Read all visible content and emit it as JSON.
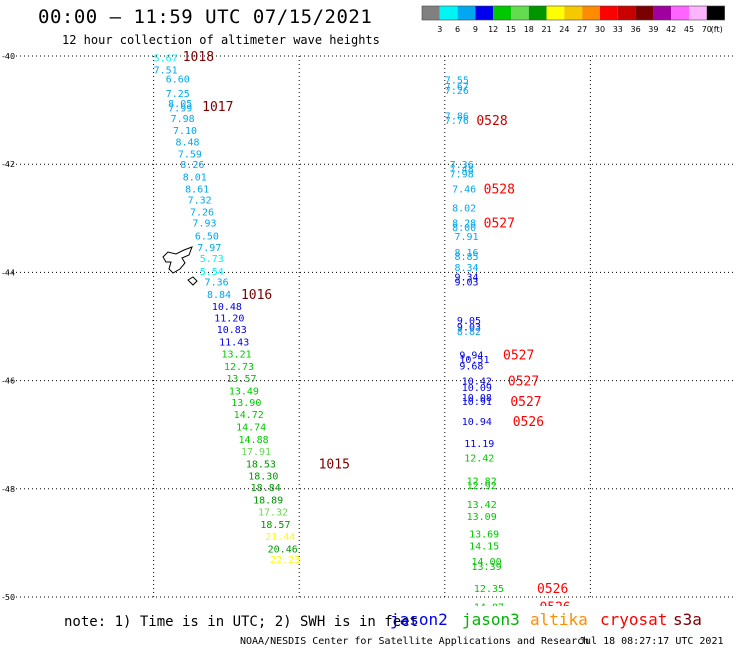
{
  "header": {
    "title": "00:00 – 11:59 UTC 07/15/2021",
    "subtitle": "12 hour collection of altimeter wave heights"
  },
  "colorbar": {
    "colors": [
      "#808080",
      "#00f5f5",
      "#00a8f0",
      "#0000f0",
      "#00c800",
      "#64dc50",
      "#009600",
      "#ffff00",
      "#f5c800",
      "#ff8c00",
      "#ff0000",
      "#c80000",
      "#7a0000",
      "#a000a0",
      "#ff64ff",
      "#ffb4ff",
      "#000000"
    ],
    "labels": [
      "3",
      "6",
      "9",
      "12",
      "15",
      "18",
      "21",
      "24",
      "27",
      "30",
      "33",
      "36",
      "39",
      "42",
      "45",
      "70"
    ],
    "unit": "(ft)"
  },
  "chart_data": {
    "type": "scatter",
    "title": "00:00 – 11:59 UTC 07/15/2021",
    "subtitle": "12 hour collection of altimeter wave heights",
    "x_ticks": [
      "-180",
      "-177",
      "-174",
      "-171",
      "-168",
      "-165"
    ],
    "y_ticks": [
      "-40",
      "-42",
      "-44",
      "-46",
      "-48",
      "-50"
    ],
    "xlim": [
      -180,
      -165
    ],
    "ylim": [
      -50,
      -40
    ],
    "units": "SWH in feet, time in UTC",
    "series": [
      {
        "name": "cryosat",
        "color": "#ff0000",
        "points": [
          {
            "lon": -177.0,
            "lat": -40.03,
            "v": "5.67"
          },
          {
            "lon": -177.0,
            "lat": -40.25,
            "v": "7.51"
          },
          {
            "lon": -176.75,
            "lat": -40.42,
            "v": "6.60"
          },
          {
            "lon": -176.75,
            "lat": -40.68,
            "v": "7.25"
          },
          {
            "lon": -176.7,
            "lat": -40.87,
            "v": "8.05"
          },
          {
            "lon": -176.7,
            "lat": -40.95,
            "v": "7.99"
          },
          {
            "lon": -176.65,
            "lat": -41.15,
            "v": "7.98"
          },
          {
            "lon": -176.6,
            "lat": -41.37,
            "v": "7.10"
          },
          {
            "lon": -176.55,
            "lat": -41.58,
            "v": "8.48"
          },
          {
            "lon": -176.5,
            "lat": -41.8,
            "v": "7.59"
          },
          {
            "lon": -176.45,
            "lat": -42.0,
            "v": "8.26"
          },
          {
            "lon": -176.4,
            "lat": -42.23,
            "v": "8.01"
          },
          {
            "lon": -176.35,
            "lat": -42.45,
            "v": "8.61"
          },
          {
            "lon": -176.3,
            "lat": -42.65,
            "v": "7.32"
          },
          {
            "lon": -176.25,
            "lat": -42.87,
            "v": "7.26"
          },
          {
            "lon": -176.2,
            "lat": -43.08,
            "v": "7.93"
          },
          {
            "lon": -176.15,
            "lat": -43.32,
            "v": "6.50"
          },
          {
            "lon": -176.1,
            "lat": -43.53,
            "v": "7.97"
          },
          {
            "lon": -176.05,
            "lat": -43.73,
            "v": "5.73"
          },
          {
            "lon": -176.05,
            "lat": -43.97,
            "v": "5.54"
          },
          {
            "lon": -175.95,
            "lat": -44.17,
            "v": "7.36"
          },
          {
            "lon": -175.9,
            "lat": -44.4,
            "v": "8.84"
          },
          {
            "lon": -175.8,
            "lat": -44.62,
            "v": "10.48"
          },
          {
            "lon": -175.75,
            "lat": -44.83,
            "v": "11.20"
          },
          {
            "lon": -175.7,
            "lat": -45.05,
            "v": "10.83"
          },
          {
            "lon": -175.65,
            "lat": -45.28,
            "v": "11.43"
          },
          {
            "lon": -175.6,
            "lat": -45.5,
            "v": "13.21"
          },
          {
            "lon": -175.55,
            "lat": -45.73,
            "v": "12.73"
          },
          {
            "lon": -175.5,
            "lat": -45.95,
            "v": "13.57"
          },
          {
            "lon": -175.45,
            "lat": -46.18,
            "v": "13.49"
          },
          {
            "lon": -175.4,
            "lat": -46.4,
            "v": "13.90"
          },
          {
            "lon": -175.35,
            "lat": -46.62,
            "v": "14.72"
          },
          {
            "lon": -175.3,
            "lat": -46.85,
            "v": "14.74"
          },
          {
            "lon": -175.25,
            "lat": -47.08,
            "v": "14.88"
          },
          {
            "lon": -175.2,
            "lat": -47.3,
            "v": "17.91"
          },
          {
            "lon": -175.1,
            "lat": -47.53,
            "v": "18.53"
          },
          {
            "lon": -175.05,
            "lat": -47.75,
            "v": "18.30"
          },
          {
            "lon": -175.0,
            "lat": -47.97,
            "v": "18.84"
          },
          {
            "lon": -174.95,
            "lat": -48.2,
            "v": "18.89"
          },
          {
            "lon": -174.85,
            "lat": -48.42,
            "v": "17.32"
          },
          {
            "lon": -174.8,
            "lat": -48.65,
            "v": "18.57"
          },
          {
            "lon": -174.7,
            "lat": -48.87,
            "v": "21.44"
          },
          {
            "lon": -174.65,
            "lat": -49.1,
            "v": "20.46"
          },
          {
            "lon": -174.6,
            "lat": -49.3,
            "v": "22.23"
          }
        ]
      },
      {
        "name": "jason3",
        "color": "#00c800",
        "points": [
          {
            "lon": -171.0,
            "lat": -40.43,
            "v": "7.55"
          },
          {
            "lon": -171.0,
            "lat": -40.55,
            "v": "7.67"
          },
          {
            "lon": -171.0,
            "lat": -40.63,
            "v": "7.26"
          },
          {
            "lon": -171.0,
            "lat": -41.1,
            "v": "7.86"
          },
          {
            "lon": -171.0,
            "lat": -41.18,
            "v": "7.76"
          },
          {
            "lon": -170.9,
            "lat": -42.0,
            "v": "7.36"
          },
          {
            "lon": -170.9,
            "lat": -42.08,
            "v": "7.48"
          },
          {
            "lon": -170.9,
            "lat": -42.17,
            "v": "7.98"
          },
          {
            "lon": -170.85,
            "lat": -42.45,
            "v": "7.46"
          },
          {
            "lon": -170.85,
            "lat": -42.8,
            "v": "8.02"
          },
          {
            "lon": -170.85,
            "lat": -43.08,
            "v": "8.28"
          },
          {
            "lon": -170.85,
            "lat": -43.16,
            "v": "8.00"
          },
          {
            "lon": -170.8,
            "lat": -43.33,
            "v": "7.91"
          },
          {
            "lon": -170.8,
            "lat": -43.62,
            "v": "8.16"
          },
          {
            "lon": -170.8,
            "lat": -43.7,
            "v": "8.85"
          },
          {
            "lon": -170.8,
            "lat": -43.9,
            "v": "8.34"
          },
          {
            "lon": -170.8,
            "lat": -44.08,
            "v": "9.34"
          },
          {
            "lon": -170.8,
            "lat": -44.17,
            "v": "9.03"
          },
          {
            "lon": -170.75,
            "lat": -44.88,
            "v": "9.05"
          },
          {
            "lon": -170.75,
            "lat": -45.0,
            "v": "9.03"
          },
          {
            "lon": -170.75,
            "lat": -45.08,
            "v": "8.82"
          },
          {
            "lon": -170.7,
            "lat": -45.52,
            "v": "9.94"
          },
          {
            "lon": -170.7,
            "lat": -45.6,
            "v": "10.51"
          },
          {
            "lon": -170.7,
            "lat": -45.72,
            "v": "9.68"
          },
          {
            "lon": -170.65,
            "lat": -46.0,
            "v": "10.42"
          },
          {
            "lon": -170.65,
            "lat": -46.12,
            "v": "10.09"
          },
          {
            "lon": -170.65,
            "lat": -46.3,
            "v": "10.08"
          },
          {
            "lon": -170.65,
            "lat": -46.38,
            "v": "10.91"
          },
          {
            "lon": -170.65,
            "lat": -46.75,
            "v": "10.94"
          },
          {
            "lon": -170.6,
            "lat": -47.15,
            "v": "11.19"
          },
          {
            "lon": -170.6,
            "lat": -47.42,
            "v": "12.42"
          },
          {
            "lon": -170.55,
            "lat": -47.85,
            "v": "12.82"
          },
          {
            "lon": -170.55,
            "lat": -47.93,
            "v": "12.92"
          },
          {
            "lon": -170.55,
            "lat": -48.28,
            "v": "13.42"
          },
          {
            "lon": -170.55,
            "lat": -48.5,
            "v": "13.09"
          },
          {
            "lon": -170.5,
            "lat": -48.83,
            "v": "13.69"
          },
          {
            "lon": -170.5,
            "lat": -49.05,
            "v": "14.15"
          },
          {
            "lon": -170.45,
            "lat": -49.33,
            "v": "14.00"
          },
          {
            "lon": -170.45,
            "lat": -49.43,
            "v": "13.39"
          },
          {
            "lon": -170.4,
            "lat": -49.83,
            "v": "12.35"
          },
          {
            "lon": -170.4,
            "lat": -50.18,
            "v": "14.07"
          },
          {
            "lon": -170.4,
            "lat": -50.28,
            "v": "14.14"
          }
        ]
      }
    ],
    "time_labels": [
      {
        "lon": -176.4,
        "lat": -40.0,
        "t": "1018",
        "color": "#7a0000"
      },
      {
        "lon": -176.0,
        "lat": -40.92,
        "t": "1017",
        "color": "#7a0000"
      },
      {
        "lon": -175.2,
        "lat": -44.4,
        "t": "1016",
        "color": "#7a0000"
      },
      {
        "lon": -173.6,
        "lat": -47.53,
        "t": "1015",
        "color": "#7a0000"
      },
      {
        "lon": -170.35,
        "lat": -41.18,
        "t": "0528",
        "color": "#c80000"
      },
      {
        "lon": -170.2,
        "lat": -42.45,
        "t": "0528",
        "color": "#ff0000"
      },
      {
        "lon": -170.2,
        "lat": -43.08,
        "t": "0527",
        "color": "#ff0000"
      },
      {
        "lon": -169.8,
        "lat": -45.52,
        "t": "0527",
        "color": "#ff0000"
      },
      {
        "lon": -169.7,
        "lat": -46.0,
        "t": "0527",
        "color": "#ff0000"
      },
      {
        "lon": -169.65,
        "lat": -46.38,
        "t": "0527",
        "color": "#ff0000"
      },
      {
        "lon": -169.6,
        "lat": -46.75,
        "t": "0526",
        "color": "#ff0000"
      },
      {
        "lon": -169.1,
        "lat": -49.83,
        "t": "0526",
        "color": "#ff0000"
      },
      {
        "lon": -169.05,
        "lat": -50.18,
        "t": "0526",
        "color": "#ff0000"
      }
    ]
  },
  "footer": {
    "note": "note: 1) Time is in UTC; 2) SWH is in feet",
    "satellites": [
      {
        "name": "jason2",
        "color": "#0000f0"
      },
      {
        "name": "jason3",
        "color": "#00b400"
      },
      {
        "name": "altika",
        "color": "#ff8c00"
      },
      {
        "name": "cryosat",
        "color": "#ff0000"
      },
      {
        "name": "s3a",
        "color": "#7a0000"
      }
    ],
    "credit": "NOAA/NESDIS Center for Satellite Applications and Research",
    "timestamp": "Jul 18 08:27:17 UTC 2021"
  }
}
